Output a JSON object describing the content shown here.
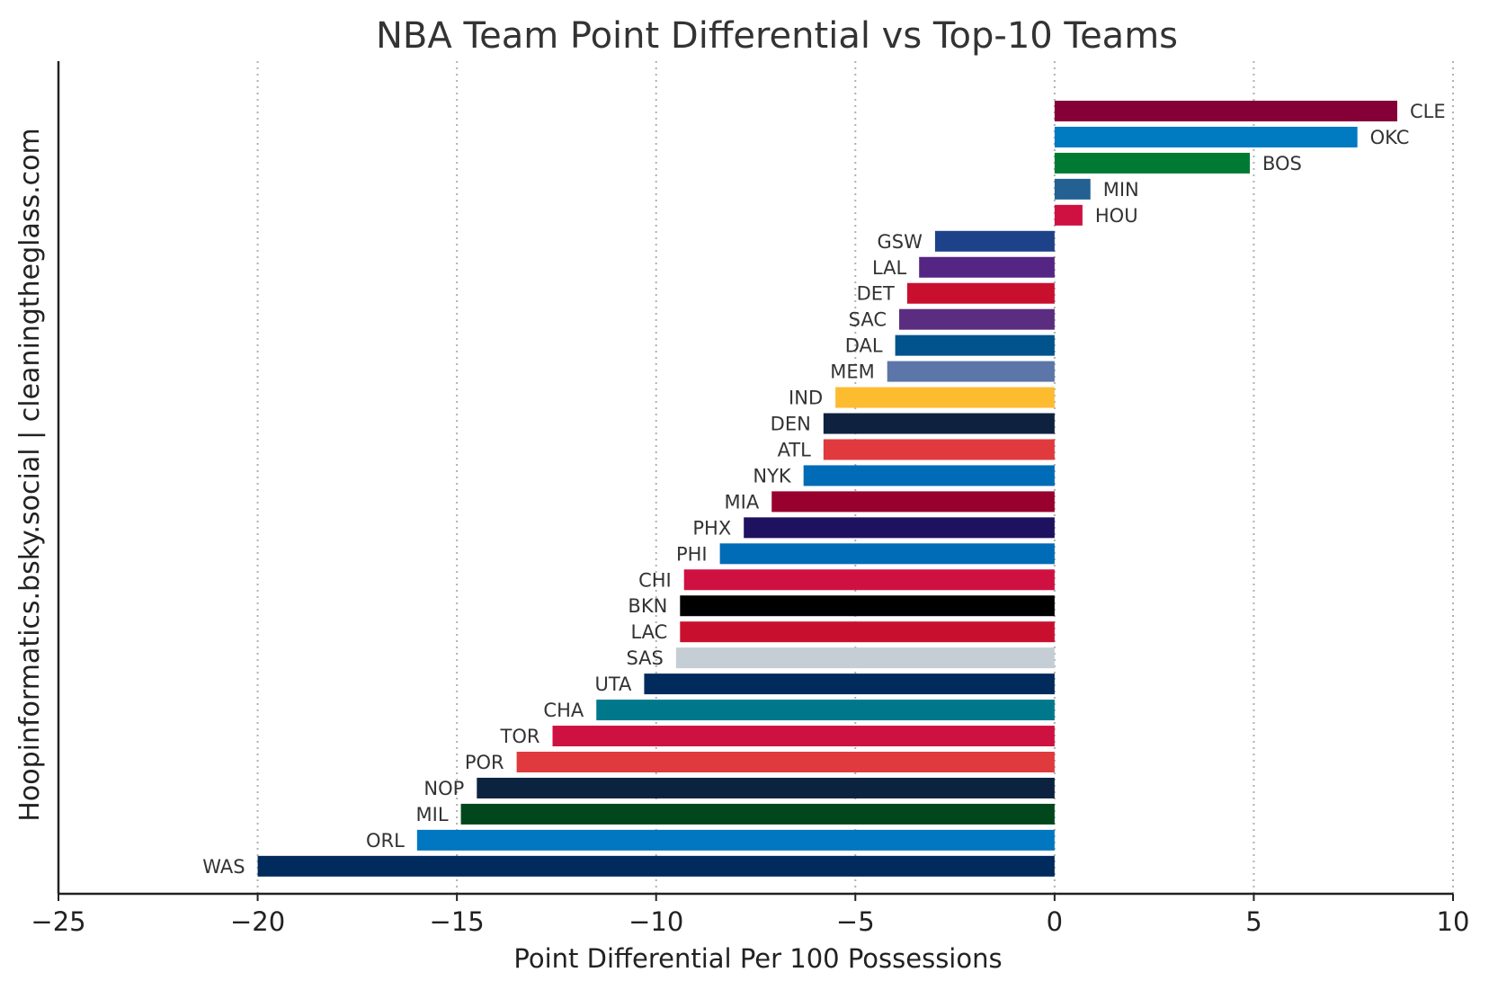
{
  "chart_data": {
    "type": "bar",
    "orientation": "horizontal",
    "title": "NBA Team Point Differential vs Top-10 Teams",
    "xlabel": "Point Differential Per 100 Possessions",
    "ylabel": "Hoopinformatics.bsky.social | cleaningtheglass.com",
    "xlim": [
      -25,
      10
    ],
    "xticks": [
      -25,
      -20,
      -15,
      -10,
      -5,
      0,
      5,
      10
    ],
    "xtick_labels": [
      "−25",
      "−20",
      "−15",
      "−10",
      "−5",
      "0",
      "5",
      "10"
    ],
    "grid": "x-dotted",
    "categories": [
      "CLE",
      "OKC",
      "BOS",
      "MIN",
      "HOU",
      "GSW",
      "LAL",
      "DET",
      "SAC",
      "DAL",
      "MEM",
      "IND",
      "DEN",
      "ATL",
      "NYK",
      "MIA",
      "PHX",
      "PHI",
      "CHI",
      "BKN",
      "LAC",
      "SAS",
      "UTA",
      "CHA",
      "TOR",
      "POR",
      "NOP",
      "MIL",
      "ORL",
      "WAS"
    ],
    "values": [
      8.6,
      7.6,
      4.9,
      0.9,
      0.7,
      -3.0,
      -3.4,
      -3.7,
      -3.9,
      -4.0,
      -4.2,
      -5.5,
      -5.8,
      -5.8,
      -6.3,
      -7.1,
      -7.8,
      -8.4,
      -9.3,
      -9.4,
      -9.4,
      -9.5,
      -10.3,
      -11.5,
      -12.6,
      -13.5,
      -14.5,
      -14.9,
      -16.0,
      -20.0
    ],
    "colors": [
      "#860038",
      "#007AC1",
      "#007A33",
      "#236192",
      "#CE1141",
      "#1D428A",
      "#552583",
      "#C8102E",
      "#5A2D81",
      "#00538C",
      "#5D76A9",
      "#FDBB30",
      "#0E2240",
      "#E03A3E",
      "#006BB6",
      "#98002E",
      "#1D1160",
      "#006BB6",
      "#CE1141",
      "#000000",
      "#C8102E",
      "#C4CED4",
      "#002B5C",
      "#00788C",
      "#CE1141",
      "#E03A3E",
      "#0C2340",
      "#00471B",
      "#0077C0",
      "#002B5C"
    ]
  }
}
